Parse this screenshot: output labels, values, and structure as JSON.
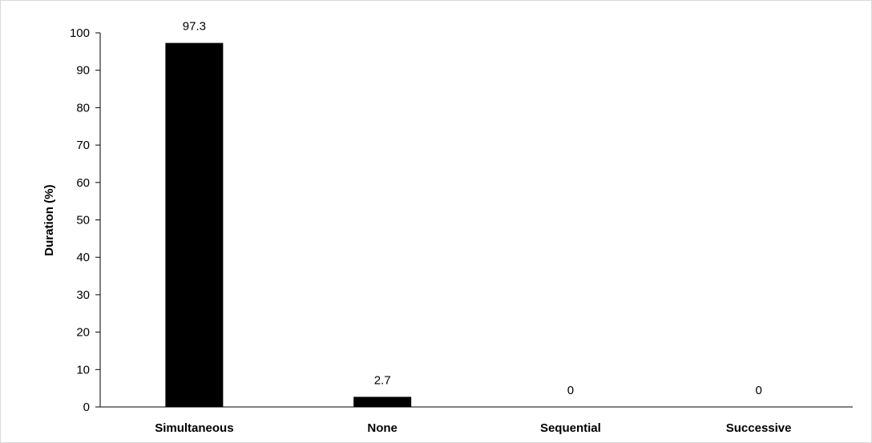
{
  "chart_data": {
    "type": "bar",
    "title": "",
    "xlabel": "",
    "ylabel": "Duration (%)",
    "categories": [
      "Simultaneous",
      "None",
      "Sequential",
      "Successive"
    ],
    "values": [
      97.3,
      2.7,
      0,
      0
    ],
    "data_labels": [
      "97.3",
      "2.7",
      "0",
      "0"
    ],
    "ylim": [
      0,
      100
    ],
    "yticks": [
      0,
      10,
      20,
      30,
      40,
      50,
      60,
      70,
      80,
      90,
      100
    ],
    "grid": false,
    "legend": "none",
    "bar_color": "#000000"
  }
}
